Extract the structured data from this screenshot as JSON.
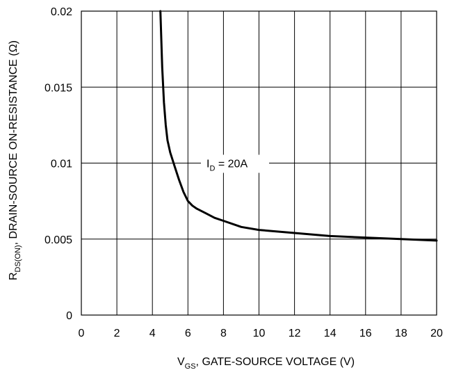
{
  "chart_data": {
    "type": "line",
    "x_ticks": [
      "0",
      "2",
      "4",
      "6",
      "8",
      "10",
      "12",
      "14",
      "16",
      "18",
      "20"
    ],
    "y_ticks": [
      "0",
      "0.005",
      "0.01",
      "0.015",
      "0.02"
    ],
    "xlim": [
      0,
      20
    ],
    "ylim": [
      0,
      0.02
    ],
    "grid": true,
    "xlabel": {
      "main": "V",
      "sub": "GS",
      "rest": ", GATE-SOURCE VOLTAGE (V)"
    },
    "ylabel": {
      "main": "R",
      "sub": "DS(ON)",
      "rest": ", DRAIN-SOURCE ON-RESISTANCE (Ω)"
    },
    "annotation": {
      "main": "I",
      "sub": "D",
      "rest": " = 20A"
    },
    "series": [
      {
        "x": [
          4.45,
          4.55,
          4.65,
          4.75,
          4.85,
          5.0,
          5.25,
          5.5,
          5.75,
          6.0,
          6.25,
          6.5,
          7.0,
          7.5,
          8.0,
          9.0,
          10.0,
          12.0,
          14.0,
          16.0,
          18.0,
          20.0
        ],
        "y": [
          0.02,
          0.0163,
          0.014,
          0.0125,
          0.0115,
          0.0107,
          0.0098,
          0.0089,
          0.0081,
          0.0075,
          0.0072,
          0.007,
          0.0067,
          0.0064,
          0.0062,
          0.0058,
          0.0056,
          0.0054,
          0.0052,
          0.0051,
          0.005,
          0.0049
        ],
        "color": "#000000"
      }
    ]
  }
}
